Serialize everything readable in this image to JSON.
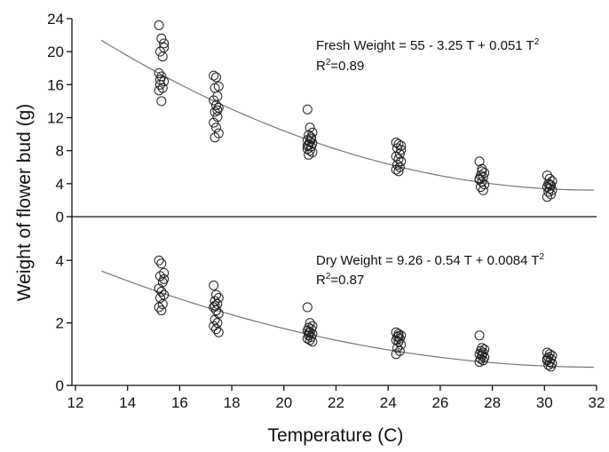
{
  "chart_data": {
    "type": "scatter",
    "xlabel": "Temperature (C)",
    "ylabel": "Weight of flower bud (g)",
    "xlim": [
      12,
      32
    ],
    "xticks": [
      12,
      14,
      16,
      18,
      20,
      22,
      24,
      26,
      28,
      30,
      32
    ],
    "panels": [
      {
        "id": "fresh",
        "ylim": [
          0,
          24
        ],
        "yticks": [
          0,
          4,
          8,
          12,
          16,
          20,
          24
        ],
        "equation": {
          "text": "Fresh Weight = 55 - 3.25 T + 0.051 T",
          "sup": "2",
          "r2_prefix": "R",
          "r2_sup": "2",
          "r2_suffix": "=0.89"
        },
        "fit": {
          "a": 55,
          "b": -3.25,
          "c": 0.051,
          "x_range": [
            13,
            31.9
          ]
        },
        "groups": [
          {
            "x": 15.3,
            "y": [
              23.2,
              21.6,
              21.0,
              20.0,
              19.4,
              17.4,
              17.0,
              16.4,
              16.0,
              15.6,
              15.3,
              14.0,
              20.5,
              16.6
            ]
          },
          {
            "x": 17.4,
            "y": [
              17.1,
              16.9,
              15.8,
              15.6,
              14.6,
              14.1,
              13.5,
              13.2,
              12.7,
              12.1,
              11.4,
              10.8,
              10.1,
              9.6,
              12.9
            ]
          },
          {
            "x": 21.0,
            "y": [
              13.0,
              10.8,
              10.2,
              9.9,
              9.6,
              9.3,
              9.1,
              8.9,
              8.7,
              8.5,
              8.2,
              8.0,
              7.8,
              7.5,
              9.4,
              8.6
            ]
          },
          {
            "x": 24.4,
            "y": [
              9.0,
              8.8,
              8.6,
              8.3,
              7.6,
              7.3,
              7.0,
              6.7,
              6.3,
              6.0,
              5.7,
              5.5,
              8.1
            ]
          },
          {
            "x": 27.6,
            "y": [
              6.7,
              5.8,
              5.3,
              5.0,
              4.8,
              4.5,
              4.2,
              3.9,
              3.6,
              3.2,
              4.6,
              5.5
            ]
          },
          {
            "x": 30.2,
            "y": [
              5.0,
              4.6,
              4.3,
              4.0,
              3.8,
              3.6,
              3.4,
              3.2,
              3.0,
              2.7,
              2.4,
              3.9
            ]
          }
        ]
      },
      {
        "id": "dry",
        "ylim": [
          0,
          5.4
        ],
        "yticks": [
          0,
          2,
          4
        ],
        "equation": {
          "text": "Dry Weight = 9.26 - 0.54 T + 0.0084 T",
          "sup": "2",
          "r2_prefix": "R",
          "r2_sup": "2",
          "r2_suffix": "=0.87"
        },
        "fit": {
          "a": 9.26,
          "b": -0.54,
          "c": 0.0084,
          "x_range": [
            13,
            31.9
          ]
        },
        "groups": [
          {
            "x": 15.3,
            "y": [
              4.0,
              3.9,
              3.6,
              3.5,
              3.3,
              3.1,
              3.0,
              2.9,
              2.8,
              2.6,
              2.5,
              2.4,
              3.4
            ]
          },
          {
            "x": 17.4,
            "y": [
              3.2,
              2.9,
              2.8,
              2.7,
              2.6,
              2.5,
              2.4,
              2.3,
              2.1,
              2.0,
              1.9,
              1.8,
              1.7,
              2.55
            ]
          },
          {
            "x": 21.0,
            "y": [
              2.5,
              2.0,
              1.9,
              1.85,
              1.8,
              1.75,
              1.7,
              1.65,
              1.6,
              1.55,
              1.5,
              1.45,
              1.4,
              1.68
            ]
          },
          {
            "x": 24.4,
            "y": [
              1.7,
              1.65,
              1.6,
              1.55,
              1.5,
              1.45,
              1.4,
              1.3,
              1.2,
              1.1,
              1.0,
              1.58
            ]
          },
          {
            "x": 27.6,
            "y": [
              1.6,
              1.2,
              1.15,
              1.1,
              1.05,
              1.0,
              0.95,
              0.9,
              0.85,
              0.8,
              0.75,
              1.0
            ]
          },
          {
            "x": 30.2,
            "y": [
              1.05,
              1.0,
              0.95,
              0.9,
              0.85,
              0.8,
              0.75,
              0.7,
              0.65,
              0.6,
              0.85
            ]
          }
        ]
      }
    ]
  }
}
